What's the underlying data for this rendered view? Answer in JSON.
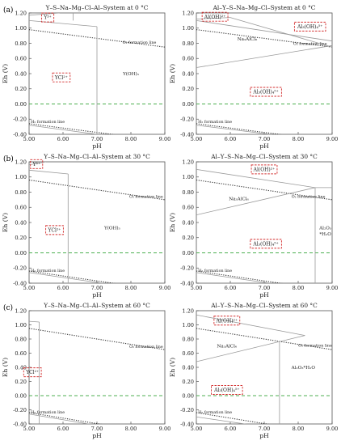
{
  "row_labels": [
    "(a)",
    "(b)",
    "(c)"
  ],
  "chart_data": [
    {
      "type": "line",
      "panel_label": "(a)",
      "title": "Y–S–Na–Mg–Cl–Al–System at 0 °C",
      "xlabel": "pH",
      "ylabel": "Eh (V)",
      "xlim": [
        5.0,
        9.0
      ],
      "ylim": [
        -0.4,
        1.2
      ],
      "xticks": [
        "5.00",
        "6.00",
        "7.00",
        "8.00",
        "9.00"
      ],
      "yticks": [
        "-0.40",
        "-0.20",
        "0.00",
        "0.20",
        "0.40",
        "0.60",
        "0.80",
        "1.00",
        "1.20"
      ],
      "series": [
        {
          "name": "O2 formation line",
          "style": "dotted",
          "x": [
            5.0,
            9.0
          ],
          "y": [
            0.98,
            0.75
          ]
        },
        {
          "name": "H2 formation line",
          "style": "dotted",
          "x": [
            5.0,
            9.0
          ],
          "y": [
            -0.26,
            -0.49
          ]
        },
        {
          "style": "dashed",
          "x": [
            5.0,
            9.0
          ],
          "y": [
            0.0,
            0.0
          ]
        },
        {
          "style": "solid",
          "x": [
            5.0,
            7.0
          ],
          "y": [
            1.1,
            1.02
          ]
        },
        {
          "style": "solid",
          "x": [
            7.0,
            7.0
          ],
          "y": [
            1.02,
            -0.4
          ]
        },
        {
          "style": "solid",
          "x": [
            6.3,
            6.3
          ],
          "y": [
            1.2,
            1.1
          ]
        },
        {
          "style": "solid",
          "x": [
            5.0,
            9.0
          ],
          "y": [
            -0.28,
            -0.52
          ]
        },
        {
          "style": "solid",
          "x": [
            5.0,
            5.9
          ],
          "y": [
            1.17,
            1.2
          ]
        }
      ],
      "annotations": [
        {
          "text": "Y³⁺",
          "x": 5.55,
          "y": 1.14,
          "boxed": true
        },
        {
          "text": "YCl²⁺",
          "x": 5.95,
          "y": 0.35,
          "boxed": true
        },
        {
          "text": "Y(OH)₃",
          "x": 8.0,
          "y": 0.4,
          "boxed": false
        },
        {
          "text": "O₂ formation line",
          "x": 8.25,
          "y": 0.815,
          "boxed": false
        },
        {
          "text": "H₂ formation line",
          "x": 5.55,
          "y": -0.235,
          "boxed": false
        }
      ]
    },
    {
      "type": "line",
      "panel_label": "",
      "title": "Al–Y–S–Na–Mg–Cl–System at 0 °C",
      "xlabel": "pH",
      "ylabel": "Eh (V)",
      "xlim": [
        5.0,
        9.0
      ],
      "ylim": [
        -0.4,
        1.2
      ],
      "xticks": [
        "5.00",
        "6.00",
        "7.00",
        "8.00",
        "9.00"
      ],
      "yticks": [
        "-0.40",
        "-0.20",
        "0.00",
        "0.20",
        "0.40",
        "0.60",
        "0.80",
        "1.00",
        "1.20"
      ],
      "series": [
        {
          "name": "O2 formation line",
          "style": "dotted",
          "x": [
            5.0,
            9.0
          ],
          "y": [
            0.98,
            0.75
          ]
        },
        {
          "name": "H2 formation line",
          "style": "dotted",
          "x": [
            5.0,
            9.0
          ],
          "y": [
            -0.26,
            -0.49
          ]
        },
        {
          "style": "dashed",
          "x": [
            5.0,
            9.0
          ],
          "y": [
            0.0,
            0.0
          ]
        },
        {
          "style": "solid",
          "x": [
            5.0,
            9.0
          ],
          "y": [
            1.1,
            0.83
          ]
        },
        {
          "style": "solid",
          "x": [
            6.0,
            9.0
          ],
          "y": [
            1.14,
            0.75
          ]
        },
        {
          "style": "solid",
          "x": [
            5.0,
            9.0
          ],
          "y": [
            0.48,
            0.77
          ]
        },
        {
          "style": "solid",
          "x": [
            5.0,
            6.0
          ],
          "y": [
            1.12,
            1.14
          ]
        },
        {
          "style": "solid",
          "x": [
            5.0,
            9.0
          ],
          "y": [
            -0.28,
            -0.5
          ]
        }
      ],
      "annotations": [
        {
          "text": "Al(OH)²⁺",
          "x": 5.55,
          "y": 1.15,
          "boxed": true
        },
        {
          "text": "Al₃(OH)₄⁵⁺",
          "x": 8.35,
          "y": 1.02,
          "boxed": true
        },
        {
          "text": "Na₃AlCl₆",
          "x": 6.5,
          "y": 0.86,
          "boxed": false
        },
        {
          "text": "Al₃(OH)₄⁵⁺",
          "x": 7.05,
          "y": 0.16,
          "boxed": true
        },
        {
          "text": "O₂ formation line",
          "x": 8.35,
          "y": 0.795,
          "boxed": false
        },
        {
          "text": "H₂ formation line",
          "x": 5.55,
          "y": -0.235,
          "boxed": false
        }
      ]
    },
    {
      "type": "line",
      "panel_label": "(b)",
      "title": "Y–S–Na–Mg–Cl–Al–System at 30 °C",
      "xlabel": "pH",
      "ylabel": "Eh (V)",
      "xlim": [
        5.0,
        9.0
      ],
      "ylim": [
        -0.4,
        1.2
      ],
      "xticks": [
        "5.00",
        "6.00",
        "7.00",
        "8.00",
        "9.00"
      ],
      "yticks": [
        "-0.40",
        "-0.20",
        "0.00",
        "0.20",
        "0.40",
        "0.60",
        "0.80",
        "1.00",
        "1.20"
      ],
      "series": [
        {
          "name": "O2 formation line",
          "style": "dotted",
          "x": [
            5.0,
            9.0
          ],
          "y": [
            0.96,
            0.7
          ]
        },
        {
          "name": "H2 formation line",
          "style": "dotted",
          "x": [
            5.0,
            9.0
          ],
          "y": [
            -0.24,
            -0.5
          ]
        },
        {
          "style": "dashed",
          "x": [
            5.0,
            9.0
          ],
          "y": [
            0.0,
            0.0
          ]
        },
        {
          "style": "solid",
          "x": [
            5.0,
            6.15
          ],
          "y": [
            1.09,
            1.04
          ]
        },
        {
          "style": "solid",
          "x": [
            6.15,
            6.15
          ],
          "y": [
            1.04,
            -0.4
          ]
        },
        {
          "style": "solid",
          "x": [
            5.0,
            9.0
          ],
          "y": [
            -0.26,
            -0.52
          ]
        },
        {
          "style": "solid",
          "x": [
            5.0,
            5.5
          ],
          "y": [
            1.16,
            1.2
          ]
        }
      ],
      "annotations": [
        {
          "text": "Y³⁺",
          "x": 5.22,
          "y": 1.17,
          "boxed": true
        },
        {
          "text": "YCl²⁺",
          "x": 5.75,
          "y": 0.3,
          "boxed": true
        },
        {
          "text": "Y(OH)₃",
          "x": 7.45,
          "y": 0.33,
          "boxed": false
        },
        {
          "text": "O₂ formation line",
          "x": 8.45,
          "y": 0.745,
          "boxed": false
        },
        {
          "text": "H₂ formation line",
          "x": 5.55,
          "y": -0.235,
          "boxed": false
        }
      ]
    },
    {
      "type": "line",
      "panel_label": "",
      "title": "Al–Y–S–Na–Mg–Cl–System at 30 °C",
      "xlabel": "pH",
      "ylabel": "Eh (V)",
      "xlim": [
        5.0,
        9.0
      ],
      "ylim": [
        -0.4,
        1.2
      ],
      "xticks": [
        "5.00",
        "6.00",
        "7.00",
        "8.00",
        "9.00"
      ],
      "yticks": [
        "-0.40",
        "-0.20",
        "0.00",
        "0.20",
        "0.40",
        "0.60",
        "0.80",
        "1.00",
        "1.20"
      ],
      "series": [
        {
          "name": "O2 formation line",
          "style": "dotted",
          "x": [
            5.0,
            9.0
          ],
          "y": [
            0.96,
            0.7
          ]
        },
        {
          "name": "H2 formation line",
          "style": "dotted",
          "x": [
            5.0,
            9.0
          ],
          "y": [
            -0.24,
            -0.5
          ]
        },
        {
          "style": "dashed",
          "x": [
            5.0,
            9.0
          ],
          "y": [
            0.0,
            0.0
          ]
        },
        {
          "style": "solid",
          "x": [
            5.0,
            8.5
          ],
          "y": [
            1.1,
            0.86
          ]
        },
        {
          "style": "solid",
          "x": [
            5.0,
            8.5
          ],
          "y": [
            0.5,
            0.86
          ]
        },
        {
          "style": "solid",
          "x": [
            8.5,
            8.5
          ],
          "y": [
            0.86,
            -0.4
          ]
        },
        {
          "style": "solid",
          "x": [
            8.5,
            9.0
          ],
          "y": [
            0.86,
            0.86
          ]
        },
        {
          "style": "solid",
          "x": [
            5.0,
            9.0
          ],
          "y": [
            -0.26,
            -0.52
          ]
        }
      ],
      "annotations": [
        {
          "text": "Al(OH)²⁺",
          "x": 7.0,
          "y": 1.1,
          "boxed": true
        },
        {
          "text": "Na₃AlCl₆",
          "x": 6.25,
          "y": 0.715,
          "boxed": false
        },
        {
          "text": "Al₃(OH)₄⁵⁺",
          "x": 7.05,
          "y": 0.12,
          "boxed": true
        },
        {
          "text": "Al₂O₃",
          "x": 8.8,
          "y": 0.33,
          "boxed": false
        },
        {
          "text": "*H₂O",
          "x": 8.8,
          "y": 0.25,
          "boxed": false
        },
        {
          "text": "O₂ formation line",
          "x": 8.3,
          "y": 0.745,
          "boxed": false
        },
        {
          "text": "H₂ formation line",
          "x": 5.55,
          "y": -0.235,
          "boxed": false
        }
      ]
    },
    {
      "type": "line",
      "panel_label": "(c)",
      "title": "Y–S–Na–Mg–Cl–Al–System at 60 °C",
      "xlabel": "pH",
      "ylabel": "Eh (V)",
      "xlim": [
        5.0,
        9.0
      ],
      "ylim": [
        -0.4,
        1.2
      ],
      "xticks": [
        "5.00",
        "6.00",
        "7.00",
        "8.00",
        "9.00"
      ],
      "yticks": [
        "-0.40",
        "-0.20",
        "0.00",
        "0.20",
        "0.40",
        "0.60",
        "0.80",
        "1.00",
        "1.20"
      ],
      "series": [
        {
          "name": "O2 formation line",
          "style": "dotted",
          "x": [
            5.0,
            9.0
          ],
          "y": [
            0.95,
            0.65
          ]
        },
        {
          "name": "H2 formation line",
          "style": "dotted",
          "x": [
            5.0,
            9.0
          ],
          "y": [
            -0.24,
            -0.55
          ]
        },
        {
          "style": "dashed",
          "x": [
            5.0,
            9.0
          ],
          "y": [
            0.0,
            0.0
          ]
        },
        {
          "style": "solid",
          "x": [
            5.0,
            5.3
          ],
          "y": [
            1.05,
            1.04
          ]
        },
        {
          "style": "solid",
          "x": [
            5.3,
            5.3
          ],
          "y": [
            1.04,
            -0.4
          ]
        },
        {
          "style": "solid",
          "x": [
            5.0,
            9.0
          ],
          "y": [
            -0.26,
            -0.58
          ]
        }
      ],
      "annotations": [
        {
          "text": "YCl²⁺",
          "x": 5.1,
          "y": 0.33,
          "boxed": true
        },
        {
          "text": "O₂ formation line",
          "x": 8.45,
          "y": 0.695,
          "boxed": false
        },
        {
          "text": "H₂ formation line",
          "x": 5.55,
          "y": -0.235,
          "boxed": false
        }
      ]
    },
    {
      "type": "line",
      "panel_label": "",
      "title": "Al–Y–S–Na–Mg–Cl–System at 60 °C",
      "xlabel": "pH",
      "ylabel": "Eh (V)",
      "xlim": [
        5.0,
        9.0
      ],
      "ylim": [
        -0.4,
        1.2
      ],
      "xticks": [
        "5.00",
        "6.00",
        "7.00",
        "8.00",
        "9.00"
      ],
      "yticks": [
        "-0.40",
        "-0.20",
        "0.00",
        "0.20",
        "0.40",
        "0.60",
        "0.80",
        "1.00",
        "1.20"
      ],
      "series": [
        {
          "name": "O2 formation line",
          "style": "dotted",
          "x": [
            5.0,
            9.0
          ],
          "y": [
            0.95,
            0.65
          ]
        },
        {
          "name": "H2 formation line",
          "style": "dotted",
          "x": [
            5.0,
            9.0
          ],
          "y": [
            -0.24,
            -0.55
          ]
        },
        {
          "style": "dashed",
          "x": [
            5.0,
            9.0
          ],
          "y": [
            0.0,
            0.0
          ]
        },
        {
          "style": "solid",
          "x": [
            5.0,
            8.2
          ],
          "y": [
            1.14,
            0.85
          ]
        },
        {
          "style": "solid",
          "x": [
            5.0,
            8.2
          ],
          "y": [
            0.48,
            0.85
          ]
        },
        {
          "style": "solid",
          "x": [
            7.45,
            7.45
          ],
          "y": [
            0.77,
            -0.4
          ]
        },
        {
          "style": "solid",
          "x": [
            5.0,
            9.0
          ],
          "y": [
            -0.3,
            -0.58
          ]
        }
      ],
      "annotations": [
        {
          "text": "Al(OH)²⁺",
          "x": 5.9,
          "y": 1.06,
          "boxed": true
        },
        {
          "text": "Na₃AlCl₆",
          "x": 5.9,
          "y": 0.7,
          "boxed": false
        },
        {
          "text": "Al₂O₃*H₂O",
          "x": 8.15,
          "y": 0.4,
          "boxed": false
        },
        {
          "text": "Al₃(OH)₄⁵⁺",
          "x": 5.9,
          "y": 0.08,
          "boxed": true
        },
        {
          "text": "O₂ formation line",
          "x": 8.5,
          "y": 0.71,
          "boxed": false
        },
        {
          "text": "H₂ formation line",
          "x": 5.55,
          "y": -0.235,
          "boxed": false
        }
      ]
    }
  ]
}
